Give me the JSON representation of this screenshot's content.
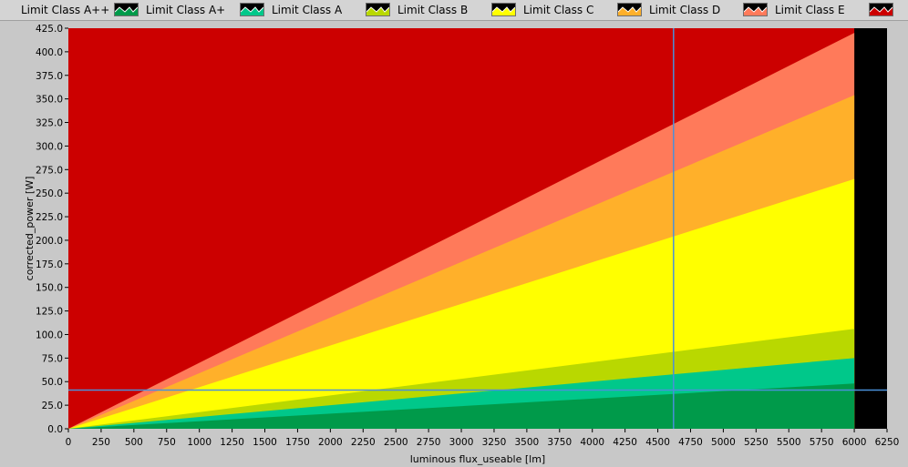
{
  "legend": {
    "items": [
      {
        "label": "Limit Class A++",
        "color": "#009a4a"
      },
      {
        "label": "Limit Class A+",
        "color": "#00c88a"
      },
      {
        "label": "Limit Class A",
        "color": "#b9d800"
      },
      {
        "label": "Limit Class B",
        "color": "#ffff00"
      },
      {
        "label": "Limit Class C",
        "color": "#ffb02a"
      },
      {
        "label": "Limit Class D",
        "color": "#ff7a5a"
      },
      {
        "label": "Limit Class E",
        "color": "#cc0000"
      }
    ]
  },
  "chart_data": {
    "type": "area",
    "xlabel": "luminous flux_useable [lm]",
    "ylabel": "corrected_power [W]",
    "xlim": [
      0,
      6250
    ],
    "ylim": [
      0,
      425
    ],
    "xticks": [
      "0",
      "250",
      "500",
      "750",
      "1000",
      "1250",
      "1500",
      "1750",
      "2000",
      "2250",
      "2500",
      "2750",
      "3000",
      "3250",
      "3500",
      "3750",
      "4000",
      "4250",
      "4500",
      "4750",
      "5000",
      "5250",
      "5500",
      "5750",
      "6000",
      "6250"
    ],
    "yticks": [
      "0.0",
      "25.0",
      "50.0",
      "75.0",
      "100.0",
      "125.0",
      "150.0",
      "175.0",
      "200.0",
      "225.0",
      "250.0",
      "275.0",
      "300.0",
      "325.0",
      "350.0",
      "375.0",
      "400.0",
      "425.0"
    ],
    "x": [
      0,
      6000
    ],
    "series": [
      {
        "name": "Limit Class A++",
        "color": "#009a4a",
        "values": [
          0,
          48
        ]
      },
      {
        "name": "Limit Class A+",
        "color": "#00c88a",
        "values": [
          0,
          75
        ]
      },
      {
        "name": "Limit Class A",
        "color": "#b9d800",
        "values": [
          0,
          106
        ]
      },
      {
        "name": "Limit Class B",
        "color": "#ffff00",
        "values": [
          0,
          265
        ]
      },
      {
        "name": "Limit Class C",
        "color": "#ffb02a",
        "values": [
          0,
          354
        ]
      },
      {
        "name": "Limit Class D",
        "color": "#ff7a5a",
        "values": [
          0,
          420
        ]
      },
      {
        "name": "Limit Class E",
        "color": "#cc0000",
        "values": [
          425,
          425
        ]
      }
    ],
    "cursor": {
      "x": 4620,
      "y": 41,
      "color": "#4a90d9"
    },
    "plot_background": "#000000"
  }
}
